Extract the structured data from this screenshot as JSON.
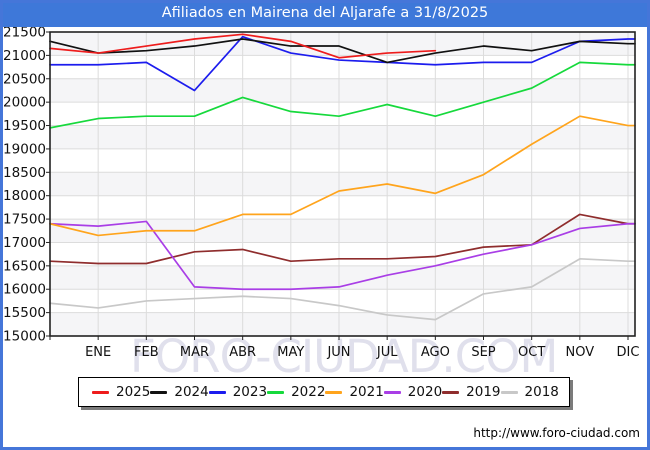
{
  "header": {
    "title": "Afiliados en Mairena del Aljarafe a 31/8/2025"
  },
  "watermark": "FORO-CIUDAD.COM",
  "footer": {
    "url": "http://www.foro-ciudad.com"
  },
  "colors": {
    "frame": "#4576d9",
    "header_bg": "#3e78d9",
    "header_text": "#ffffff",
    "grid": "#dcdcdc",
    "band": "#f5f5f7",
    "axis": "#222222",
    "tick_label": "#111111",
    "watermark": "#e0e0ec"
  },
  "chart_data": {
    "type": "line",
    "title": "Afiliados en Mairena del Aljarafe a 31/8/2025",
    "x_labels": [
      "ENE",
      "FEB",
      "MAR",
      "ABR",
      "MAY",
      "JUN",
      "JUL",
      "AGO",
      "SEP",
      "OCT",
      "NOV",
      "DIC"
    ],
    "note_first_point": "each series has one unlabeled starting point on the left axis before ENE",
    "ylim": [
      15000,
      21500
    ],
    "ytick_step": 500,
    "y_tick_labels": [
      "21500",
      "21000",
      "20500",
      "20000",
      "19500",
      "19000",
      "18500",
      "18000",
      "17500",
      "17000",
      "16500",
      "16000",
      "15500",
      "15000"
    ],
    "grid": true,
    "legend_position": "bottom",
    "series": [
      {
        "name": "2025",
        "color": "#ee1c1c",
        "values": [
          21150,
          21050,
          21200,
          21350,
          21450,
          21300,
          20950,
          21050,
          21100
        ]
      },
      {
        "name": "2024",
        "color": "#111111",
        "values": [
          21300,
          21050,
          21100,
          21200,
          21350,
          21200,
          21200,
          20850,
          21050,
          21200,
          21100,
          21300,
          21250
        ]
      },
      {
        "name": "2023",
        "color": "#1c1cee",
        "values": [
          20800,
          20800,
          20850,
          20250,
          21400,
          21050,
          20900,
          20850,
          20800,
          20850,
          20850,
          21300,
          21350
        ]
      },
      {
        "name": "2022",
        "color": "#16d93c",
        "values": [
          19450,
          19650,
          19700,
          19700,
          20100,
          19800,
          19700,
          19950,
          19700,
          20000,
          20300,
          20850,
          20800
        ]
      },
      {
        "name": "2021",
        "color": "#ffa41c",
        "values": [
          17400,
          17150,
          17250,
          17250,
          17600,
          17600,
          18100,
          18250,
          18050,
          18450,
          19100,
          19700,
          19500
        ]
      },
      {
        "name": "2020",
        "color": "#a93ee6",
        "values": [
          17400,
          17350,
          17450,
          16050,
          16000,
          16000,
          16050,
          16300,
          16500,
          16750,
          16950,
          17300,
          17400
        ]
      },
      {
        "name": "2019",
        "color": "#8f2d2d",
        "values": [
          16600,
          16550,
          16550,
          16800,
          16850,
          16600,
          16650,
          16650,
          16700,
          16900,
          16950,
          17600,
          17400
        ]
      },
      {
        "name": "2018",
        "color": "#c8c8c8",
        "values": [
          15700,
          15600,
          15750,
          15800,
          15850,
          15800,
          15650,
          15450,
          15350,
          15900,
          16050,
          16650,
          16600
        ]
      }
    ]
  }
}
